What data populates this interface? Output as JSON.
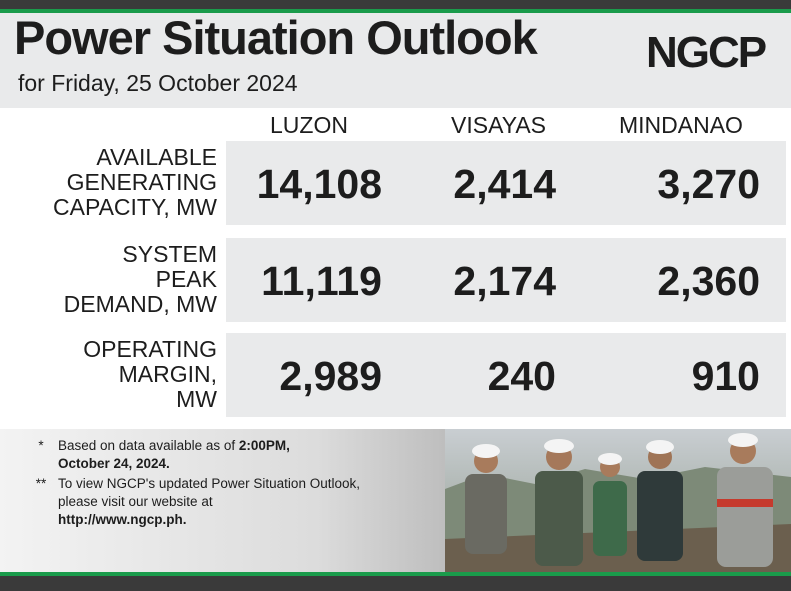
{
  "header": {
    "title": "Power Situation Outlook",
    "subtitle": "for Friday, 25 October 2024",
    "logo_text": "NGCP"
  },
  "columns": [
    "LUZON",
    "VISAYAS",
    "MINDANAO"
  ],
  "rows": [
    {
      "label": "AVAILABLE\nGENERATING\nCAPACITY, MW",
      "values": [
        "14,108",
        "2,414",
        "3,270"
      ]
    },
    {
      "label": "SYSTEM\nPEAK\nDEMAND, MW",
      "values": [
        "11,119",
        "2,174",
        "2,360"
      ]
    },
    {
      "label": "OPERATING\nMARGIN,\nMW",
      "values": [
        "2,989",
        "240",
        "910"
      ]
    }
  ],
  "notes": {
    "n1_marker": "*",
    "n1_text": "Based on data available as of ",
    "n1_bold1": "2:00PM,",
    "n1_bold2": "October 24, 2024.",
    "n2_marker": "**",
    "n2_text": "To view NGCP's updated Power Situation Outlook, please visit our website at",
    "n2_link": "http://www.ngcp.ph."
  },
  "colors": {
    "brand_green": "#1a9b4b",
    "panel_gray": "#e9eaeb",
    "dark_bar": "#3a3a3a"
  }
}
